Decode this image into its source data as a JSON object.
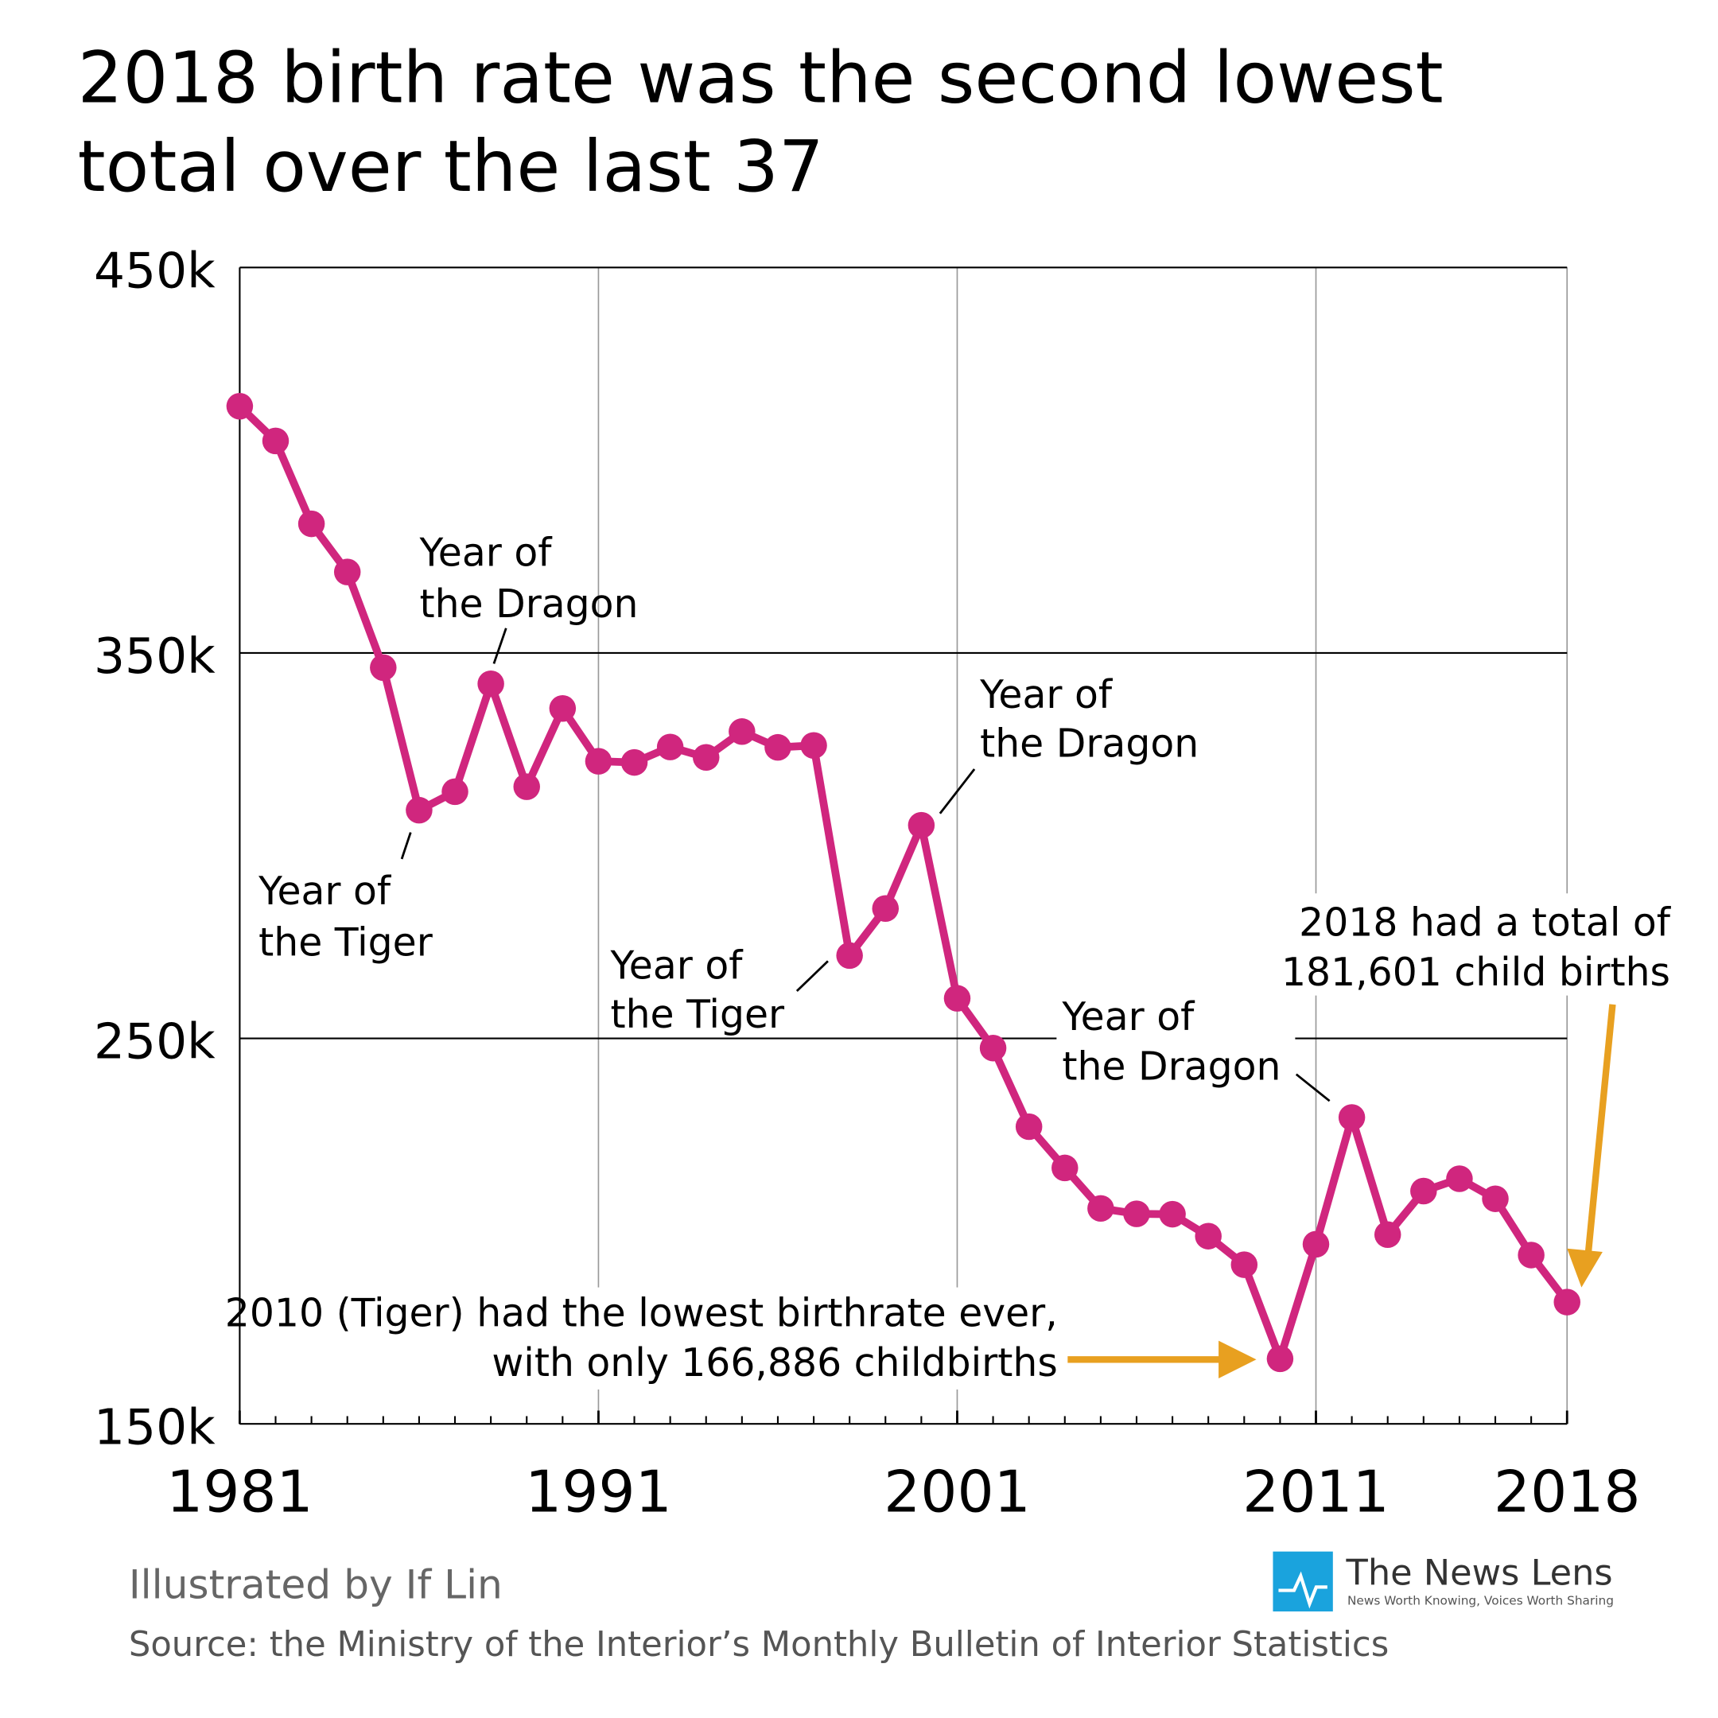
{
  "colors": {
    "line": "#D0267E",
    "arrow": "#E8A020",
    "grid": "#999999",
    "logo": "#1AA3DD"
  },
  "chart_data": {
    "type": "line",
    "title_lines": [
      "2018 birth rate was the second lowest",
      "total over the last 37"
    ],
    "xlabel": "",
    "ylabel": "",
    "ylim": [
      150000,
      450000
    ],
    "xlim": [
      1981,
      2018
    ],
    "grid": true,
    "y_ticks": [
      {
        "value": 150000,
        "label": "150k"
      },
      {
        "value": 250000,
        "label": "250k"
      },
      {
        "value": 350000,
        "label": "350k"
      },
      {
        "value": 450000,
        "label": "450k"
      }
    ],
    "x_ticks": [
      {
        "value": 1981,
        "label": "1981"
      },
      {
        "value": 1991,
        "label": "1991"
      },
      {
        "value": 2001,
        "label": "2001"
      },
      {
        "value": 2011,
        "label": "2011"
      },
      {
        "value": 2018,
        "label": "2018"
      }
    ],
    "x": [
      1981,
      1982,
      1983,
      1984,
      1985,
      1986,
      1987,
      1988,
      1989,
      1990,
      1991,
      1992,
      1993,
      1994,
      1995,
      1996,
      1997,
      1998,
      1999,
      2000,
      2001,
      2002,
      2003,
      2004,
      2005,
      2006,
      2007,
      2008,
      2009,
      2010,
      2011,
      2012,
      2013,
      2014,
      2015,
      2016,
      2017,
      2018
    ],
    "values": [
      414000,
      405000,
      383500,
      371000,
      346200,
      309200,
      314000,
      342000,
      315300,
      335600,
      321900,
      321600,
      325600,
      322900,
      329600,
      325500,
      326000,
      271500,
      283700,
      305300,
      260400,
      247500,
      227100,
      216400,
      205900,
      204500,
      204400,
      198700,
      191300,
      166886,
      196600,
      229500,
      199100,
      210400,
      213600,
      208400,
      193800,
      181601
    ],
    "annotations": [
      {
        "lines": [
          "Year of",
          "the Dragon"
        ],
        "year": 1988
      },
      {
        "lines": [
          "Year of",
          "the Tiger"
        ],
        "year": 1986
      },
      {
        "lines": [
          "Year of",
          "the Dragon"
        ],
        "year": 2000
      },
      {
        "lines": [
          "Year of",
          "the Tiger"
        ],
        "year": 1998
      },
      {
        "lines": [
          "Year of",
          "the Dragon"
        ],
        "year": 2012
      },
      {
        "lines": [
          "2010 (Tiger) had the lowest birthrate ever,",
          "with only 166,886 childbirths"
        ],
        "year": 2010
      },
      {
        "lines": [
          "2018 had a total of",
          "181,601 child births"
        ],
        "year": 2018
      }
    ]
  },
  "footer": {
    "credit": "Illustrated by If Lin",
    "source": "Source: the Ministry of the Interior’s Monthly Bulletin of Interior Statistics",
    "logo_name": "The News Lens",
    "logo_tagline": "News Worth Knowing, Voices Worth Sharing"
  }
}
